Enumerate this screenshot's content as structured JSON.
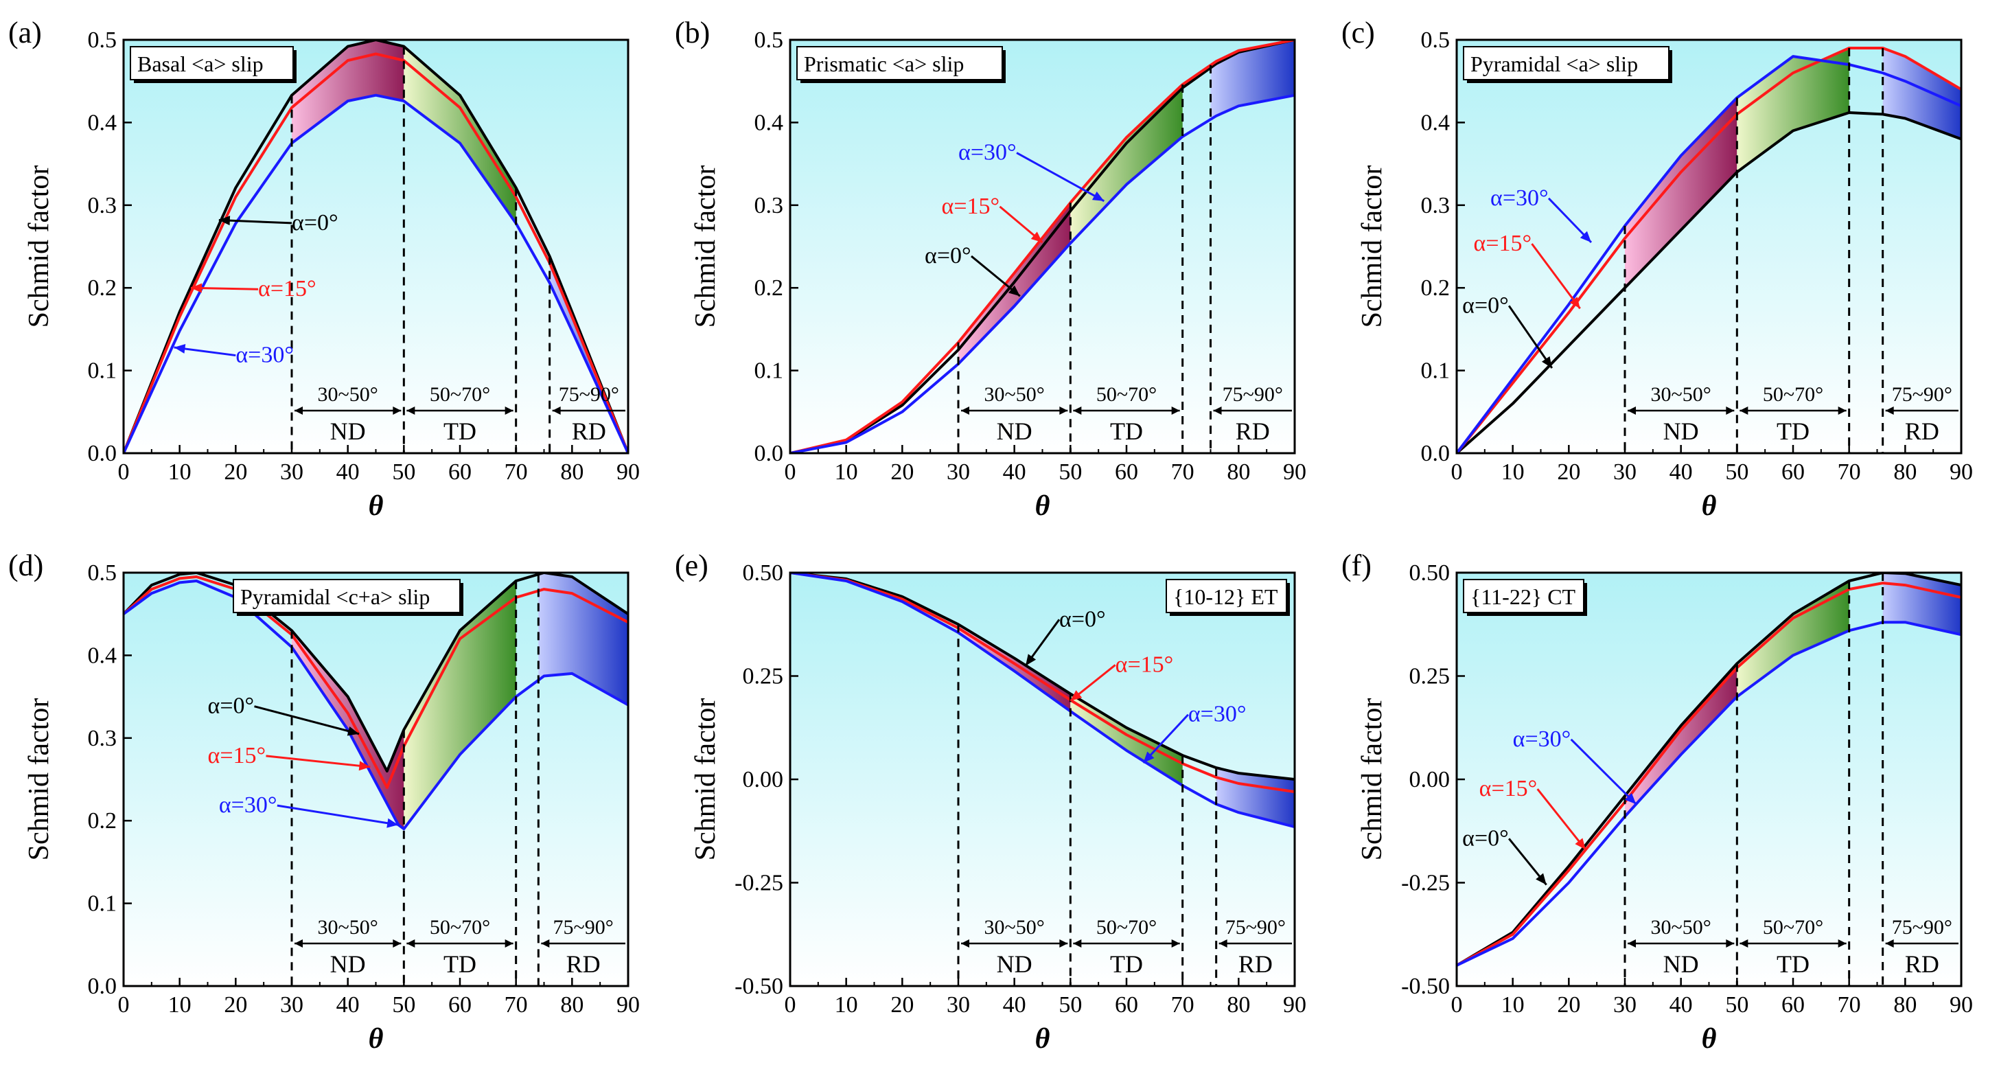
{
  "figure": {
    "ylabel": "Schmid factor",
    "xlabel": "θ",
    "region_colors": {
      "ND": [
        "#ffb7dd",
        "#8d0b4a"
      ],
      "TD": [
        "#f2f7c6",
        "#2f8516"
      ],
      "RD": [
        "#c5c9ff",
        "#1126c2"
      ]
    },
    "plot_bg_top": "#b2f1f6",
    "plot_bg_bottom": "#ffffff",
    "series_colors": {
      "a0": "#000000",
      "a15": "#ff1a1a",
      "a30": "#1a1aff"
    }
  },
  "chart_data": [
    {
      "type": "line",
      "panel": "(a)",
      "title": "Basal <a> slip",
      "xlabel": "θ",
      "ylabel": "Schmid factor",
      "xlim": [
        0,
        90
      ],
      "ylim": [
        0,
        0.5
      ],
      "xticks": [
        "0",
        "10",
        "20",
        "30",
        "40",
        "50",
        "60",
        "70",
        "80",
        "90"
      ],
      "yticks": [
        "0.0",
        "0.1",
        "0.2",
        "0.3",
        "0.4",
        "0.5"
      ],
      "series": [
        {
          "name": "α=0°",
          "color": "#000000",
          "x": [
            0,
            10,
            20,
            30,
            40,
            45,
            50,
            60,
            70,
            76,
            80,
            90
          ],
          "y": [
            0,
            0.171,
            0.321,
            0.433,
            0.492,
            0.5,
            0.492,
            0.433,
            0.321,
            0.238,
            0.171,
            0
          ]
        },
        {
          "name": "α=15°",
          "color": "#ff1a1a",
          "x": [
            0,
            10,
            20,
            30,
            40,
            45,
            50,
            60,
            70,
            76,
            80,
            90
          ],
          "y": [
            0,
            0.165,
            0.31,
            0.418,
            0.475,
            0.483,
            0.475,
            0.418,
            0.31,
            0.23,
            0.165,
            0
          ]
        },
        {
          "name": "α=30°",
          "color": "#1a1aff",
          "x": [
            0,
            10,
            20,
            30,
            40,
            45,
            50,
            60,
            70,
            76,
            80,
            90
          ],
          "y": [
            0,
            0.148,
            0.278,
            0.375,
            0.426,
            0.433,
            0.426,
            0.375,
            0.278,
            0.206,
            0.148,
            0
          ]
        }
      ],
      "regions": [
        {
          "label": "ND",
          "range_label": "30~50°",
          "x0": 30,
          "x1": 50
        },
        {
          "label": "TD",
          "range_label": "50~70°",
          "x0": 50,
          "x1": 70
        },
        {
          "label": "RD",
          "range_label": "75~90°",
          "x0": 76,
          "x1": 90
        }
      ],
      "annotations": [
        {
          "text": "α=0°",
          "series": 0,
          "tx": 30,
          "ty": 0.27,
          "ax": 17,
          "ay": 0.282
        },
        {
          "text": "α=15°",
          "series": 1,
          "tx": 24,
          "ty": 0.19,
          "ax": 12,
          "ay": 0.2
        },
        {
          "text": "α=30°",
          "series": 2,
          "tx": 20,
          "ty": 0.11,
          "ax": 9,
          "ay": 0.128
        }
      ]
    },
    {
      "type": "line",
      "panel": "(b)",
      "title": "Prismatic <a> slip",
      "xlabel": "θ",
      "ylabel": "Schmid factor",
      "xlim": [
        0,
        90
      ],
      "ylim": [
        0,
        0.5
      ],
      "xticks": [
        "0",
        "10",
        "20",
        "30",
        "40",
        "50",
        "60",
        "70",
        "80",
        "90"
      ],
      "yticks": [
        "0.0",
        "0.1",
        "0.2",
        "0.3",
        "0.4",
        "0.5"
      ],
      "series": [
        {
          "name": "α=0°",
          "color": "#000000",
          "x": [
            0,
            10,
            20,
            30,
            40,
            50,
            60,
            70,
            76,
            80,
            90
          ],
          "y": [
            0,
            0.015,
            0.058,
            0.125,
            0.207,
            0.293,
            0.375,
            0.442,
            0.471,
            0.485,
            0.5
          ]
        },
        {
          "name": "α=15°",
          "color": "#ff1a1a",
          "x": [
            0,
            10,
            20,
            30,
            40,
            50,
            60,
            70,
            76,
            80,
            90
          ],
          "y": [
            0,
            0.016,
            0.062,
            0.134,
            0.218,
            0.303,
            0.382,
            0.446,
            0.474,
            0.487,
            0.5
          ]
        },
        {
          "name": "α=30°",
          "color": "#1a1aff",
          "x": [
            0,
            10,
            20,
            30,
            40,
            50,
            60,
            70,
            76,
            80,
            90
          ],
          "y": [
            0,
            0.013,
            0.05,
            0.108,
            0.178,
            0.254,
            0.325,
            0.383,
            0.408,
            0.42,
            0.433
          ]
        }
      ],
      "regions": [
        {
          "label": "ND",
          "range_label": "30~50°",
          "x0": 30,
          "x1": 50
        },
        {
          "label": "TD",
          "range_label": "50~70°",
          "x0": 50,
          "x1": 70
        },
        {
          "label": "RD",
          "range_label": "75~90°",
          "x0": 75,
          "x1": 90
        }
      ],
      "annotations": [
        {
          "text": "α=30°",
          "series": 2,
          "tx": 30,
          "ty": 0.355,
          "ax": 56,
          "ay": 0.305
        },
        {
          "text": "α=15°",
          "series": 1,
          "tx": 27,
          "ty": 0.29,
          "ax": 45,
          "ay": 0.255
        },
        {
          "text": "α=0°",
          "series": 0,
          "tx": 24,
          "ty": 0.23,
          "ax": 41,
          "ay": 0.19
        }
      ]
    },
    {
      "type": "line",
      "panel": "(c)",
      "title": "Pyramidal <a> slip",
      "xlabel": "θ",
      "ylabel": "Schmid factor",
      "xlim": [
        0,
        90
      ],
      "ylim": [
        0,
        0.5
      ],
      "xticks": [
        "0",
        "10",
        "20",
        "30",
        "40",
        "50",
        "60",
        "70",
        "80",
        "90"
      ],
      "yticks": [
        "0.0",
        "0.1",
        "0.2",
        "0.3",
        "0.4",
        "0.5"
      ],
      "series": [
        {
          "name": "α=0°",
          "color": "#000000",
          "x": [
            0,
            10,
            20,
            30,
            40,
            50,
            60,
            70,
            76,
            80,
            90
          ],
          "y": [
            0,
            0.06,
            0.13,
            0.2,
            0.27,
            0.34,
            0.39,
            0.412,
            0.41,
            0.405,
            0.38
          ]
        },
        {
          "name": "α=15°",
          "color": "#ff1a1a",
          "x": [
            0,
            10,
            20,
            30,
            40,
            50,
            60,
            70,
            76,
            80,
            90
          ],
          "y": [
            0,
            0.085,
            0.17,
            0.26,
            0.34,
            0.41,
            0.46,
            0.49,
            0.49,
            0.48,
            0.44
          ]
        },
        {
          "name": "α=30°",
          "color": "#1a1aff",
          "x": [
            0,
            10,
            20,
            30,
            40,
            50,
            60,
            70,
            76,
            80,
            90
          ],
          "y": [
            0,
            0.09,
            0.18,
            0.275,
            0.36,
            0.43,
            0.48,
            0.47,
            0.46,
            0.45,
            0.42
          ]
        }
      ],
      "regions": [
        {
          "label": "ND",
          "range_label": "30~50°",
          "x0": 30,
          "x1": 50
        },
        {
          "label": "TD",
          "range_label": "50~70°",
          "x0": 50,
          "x1": 70
        },
        {
          "label": "RD",
          "range_label": "75~90°",
          "x0": 76,
          "x1": 90
        }
      ],
      "annotations": [
        {
          "text": "α=30°",
          "series": 2,
          "tx": 6,
          "ty": 0.3,
          "ax": 24,
          "ay": 0.255
        },
        {
          "text": "α=15°",
          "series": 1,
          "tx": 3,
          "ty": 0.245,
          "ax": 22,
          "ay": 0.175
        },
        {
          "text": "α=0°",
          "series": 0,
          "tx": 1,
          "ty": 0.17,
          "ax": 17,
          "ay": 0.103
        }
      ]
    },
    {
      "type": "line",
      "panel": "(d)",
      "title": "Pyramidal <c+a> slip",
      "xlabel": "θ",
      "ylabel": "Schmid factor",
      "xlim": [
        0,
        90
      ],
      "ylim": [
        0,
        0.5
      ],
      "xticks": [
        "0",
        "10",
        "20",
        "30",
        "40",
        "50",
        "60",
        "70",
        "80",
        "90"
      ],
      "yticks": [
        "0.0",
        "0.1",
        "0.2",
        "0.3",
        "0.4",
        "0.5"
      ],
      "series": [
        {
          "name": "α=0°",
          "color": "#000000",
          "x": [
            0,
            5,
            10,
            13,
            20,
            30,
            40,
            47,
            50,
            60,
            70,
            75,
            80,
            90
          ],
          "y": [
            0.45,
            0.485,
            0.498,
            0.5,
            0.485,
            0.43,
            0.35,
            0.26,
            0.31,
            0.43,
            0.49,
            0.5,
            0.495,
            0.45
          ]
        },
        {
          "name": "α=15°",
          "color": "#ff1a1a",
          "x": [
            0,
            5,
            10,
            13,
            20,
            30,
            40,
            47,
            50,
            60,
            70,
            75,
            80,
            90
          ],
          "y": [
            0.45,
            0.48,
            0.493,
            0.495,
            0.48,
            0.425,
            0.33,
            0.24,
            0.29,
            0.42,
            0.47,
            0.48,
            0.475,
            0.44
          ]
        },
        {
          "name": "α=30°",
          "color": "#1a1aff",
          "x": [
            0,
            5,
            10,
            13,
            20,
            30,
            40,
            49,
            50,
            60,
            70,
            75,
            80,
            90
          ],
          "y": [
            0.45,
            0.475,
            0.488,
            0.49,
            0.47,
            0.41,
            0.31,
            0.195,
            0.19,
            0.28,
            0.35,
            0.375,
            0.378,
            0.34
          ]
        }
      ],
      "regions": [
        {
          "label": "ND",
          "range_label": "30~50°",
          "x0": 30,
          "x1": 50
        },
        {
          "label": "TD",
          "range_label": "50~70°",
          "x0": 50,
          "x1": 70
        },
        {
          "label": "RD",
          "range_label": "75~90°",
          "x0": 74,
          "x1": 90
        }
      ],
      "annotations": [
        {
          "text": "α=0°",
          "series": 0,
          "tx": 15,
          "ty": 0.33,
          "ax": 42,
          "ay": 0.305
        },
        {
          "text": "α=15°",
          "series": 1,
          "tx": 15,
          "ty": 0.27,
          "ax": 44,
          "ay": 0.265
        },
        {
          "text": "α=30°",
          "series": 2,
          "tx": 17,
          "ty": 0.21,
          "ax": 49,
          "ay": 0.195
        }
      ]
    },
    {
      "type": "line",
      "panel": "(e)",
      "title": "{10-12} ET",
      "xlabel": "θ",
      "ylabel": "Schmid factor",
      "xlim": [
        0,
        90
      ],
      "ylim": [
        -0.5,
        0.5
      ],
      "xticks": [
        "0",
        "10",
        "20",
        "30",
        "40",
        "50",
        "60",
        "70",
        "80",
        "90"
      ],
      "yticks": [
        "-0.50",
        "-0.25",
        "0.00",
        "0.25",
        "0.50"
      ],
      "series": [
        {
          "name": "α=0°",
          "color": "#000000",
          "x": [
            0,
            10,
            20,
            30,
            40,
            50,
            60,
            70,
            76,
            80,
            90
          ],
          "y": [
            0.5,
            0.485,
            0.442,
            0.375,
            0.293,
            0.207,
            0.125,
            0.058,
            0.028,
            0.015,
            0
          ]
        },
        {
          "name": "α=15°",
          "color": "#ff1a1a",
          "x": [
            0,
            10,
            20,
            30,
            40,
            50,
            60,
            70,
            76,
            80,
            90
          ],
          "y": [
            0.5,
            0.482,
            0.436,
            0.366,
            0.28,
            0.192,
            0.108,
            0.038,
            0.005,
            -0.01,
            -0.03
          ]
        },
        {
          "name": "α=30°",
          "color": "#1a1aff",
          "x": [
            0,
            10,
            20,
            30,
            40,
            50,
            60,
            70,
            76,
            80,
            90
          ],
          "y": [
            0.5,
            0.48,
            0.43,
            0.355,
            0.262,
            0.165,
            0.07,
            -0.015,
            -0.06,
            -0.08,
            -0.115
          ]
        }
      ],
      "regions": [
        {
          "label": "ND",
          "range_label": "30~50°",
          "x0": 30,
          "x1": 50
        },
        {
          "label": "TD",
          "range_label": "50~70°",
          "x0": 50,
          "x1": 70
        },
        {
          "label": "RD",
          "range_label": "75~90°",
          "x0": 76,
          "x1": 90
        }
      ],
      "annotations": [
        {
          "text": "α=0°",
          "series": 0,
          "tx": 48,
          "ty": 0.37,
          "ax": 42,
          "ay": 0.275
        },
        {
          "text": "α=15°",
          "series": 1,
          "tx": 58,
          "ty": 0.26,
          "ax": 50,
          "ay": 0.19
        },
        {
          "text": "α=30°",
          "series": 2,
          "tx": 71,
          "ty": 0.14,
          "ax": 63,
          "ay": 0.04
        }
      ]
    },
    {
      "type": "line",
      "panel": "(f)",
      "title": "{11-22} CT",
      "xlabel": "θ",
      "ylabel": "Schmid factor",
      "xlim": [
        0,
        90
      ],
      "ylim": [
        -0.5,
        0.5
      ],
      "xticks": [
        "0",
        "10",
        "20",
        "30",
        "40",
        "50",
        "60",
        "70",
        "80",
        "90"
      ],
      "yticks": [
        "-0.50",
        "-0.25",
        "0.00",
        "0.25",
        "0.50"
      ],
      "series": [
        {
          "name": "α=0°",
          "color": "#000000",
          "x": [
            0,
            10,
            20,
            30,
            40,
            50,
            60,
            70,
            76,
            80,
            90
          ],
          "y": [
            -0.45,
            -0.37,
            -0.21,
            -0.04,
            0.13,
            0.28,
            0.4,
            0.48,
            0.5,
            0.498,
            0.47
          ]
        },
        {
          "name": "α=15°",
          "color": "#ff1a1a",
          "x": [
            0,
            10,
            20,
            30,
            40,
            50,
            60,
            70,
            76,
            80,
            90
          ],
          "y": [
            -0.45,
            -0.375,
            -0.22,
            -0.055,
            0.12,
            0.27,
            0.39,
            0.46,
            0.475,
            0.47,
            0.44
          ]
        },
        {
          "name": "α=30°",
          "color": "#1a1aff",
          "x": [
            0,
            10,
            20,
            30,
            40,
            50,
            60,
            70,
            76,
            80,
            90
          ],
          "y": [
            -0.45,
            -0.385,
            -0.25,
            -0.09,
            0.06,
            0.2,
            0.3,
            0.36,
            0.38,
            0.38,
            0.35
          ]
        }
      ],
      "regions": [
        {
          "label": "ND",
          "range_label": "30~50°",
          "x0": 30,
          "x1": 50
        },
        {
          "label": "TD",
          "range_label": "50~70°",
          "x0": 50,
          "x1": 70
        },
        {
          "label": "RD",
          "range_label": "75~90°",
          "x0": 76,
          "x1": 90
        }
      ],
      "annotations": [
        {
          "text": "α=30°",
          "series": 2,
          "tx": 10,
          "ty": 0.08,
          "ax": 32,
          "ay": -0.06
        },
        {
          "text": "α=15°",
          "series": 1,
          "tx": 4,
          "ty": -0.04,
          "ax": 23,
          "ay": -0.17
        },
        {
          "text": "α=0°",
          "series": 0,
          "tx": 1,
          "ty": -0.16,
          "ax": 16,
          "ay": -0.255
        }
      ]
    }
  ]
}
